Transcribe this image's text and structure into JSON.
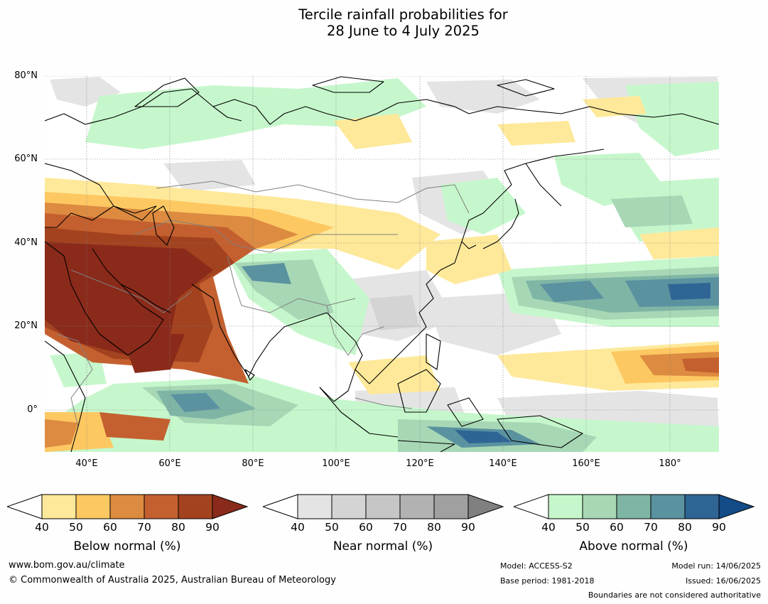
{
  "title": {
    "line1": "Tercile rainfall probabilities for",
    "line2": "28 June to 4 July 2025"
  },
  "map": {
    "lat_labels": [
      "80°N",
      "60°N",
      "40°N",
      "20°N",
      "0°"
    ],
    "lon_labels": [
      "40°E",
      "60°E",
      "80°E",
      "100°E",
      "120°E",
      "140°E",
      "160°E",
      "180°"
    ],
    "colors": {
      "ocean_base": "#ffffff",
      "coastline": "#000000",
      "borders": "#808080",
      "graticule": "#808080"
    }
  },
  "legends": [
    {
      "name": "Below normal (%)",
      "ticks": [
        "40",
        "50",
        "60",
        "70",
        "80",
        "90"
      ],
      "colors": [
        "#fee99a",
        "#fdc862",
        "#dd8b40",
        "#c4602f",
        "#a3421f",
        "#8a2a1a"
      ]
    },
    {
      "name": "Near normal (%)",
      "ticks": [
        "40",
        "50",
        "60",
        "70",
        "80",
        "90"
      ],
      "colors": [
        "#e4e4e4",
        "#d4d4d4",
        "#c6c6c6",
        "#b2b2b2",
        "#a0a0a0",
        "#808080"
      ]
    },
    {
      "name": "Above normal (%)",
      "ticks": [
        "40",
        "50",
        "60",
        "70",
        "80",
        "90"
      ],
      "colors": [
        "#c6f7cc",
        "#a7d7b5",
        "#7fb5a5",
        "#5a92a0",
        "#2f6595",
        "#134b86"
      ]
    }
  ],
  "footer": {
    "website": "www.bom.gov.au/climate",
    "copyright": "© Commonwealth of Australia 2025, Australian Bureau of Meteorology",
    "model": "Model: ACCESS-S2",
    "base_period": "Base period: 1981-2018",
    "model_run": "Model run: 14/06/2025",
    "issued": "Issued: 16/06/2025",
    "boundaries_note": "Boundaries are not considered authoritative"
  }
}
